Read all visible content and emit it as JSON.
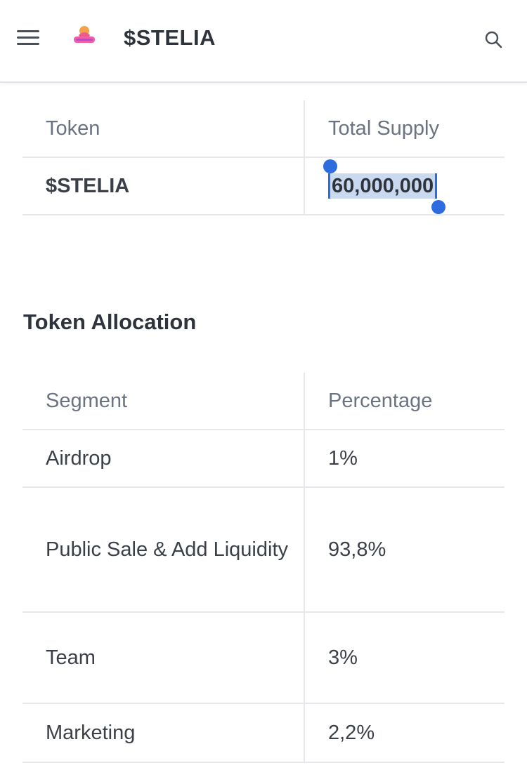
{
  "header": {
    "title": "$STELIA",
    "menu_icon": "hamburger-menu-icon",
    "search_icon": "search-icon",
    "logo_icon": "stelia-logo-icon"
  },
  "supply_table": {
    "headers": [
      "Token",
      "Total Supply"
    ],
    "row": {
      "token": "$STELIA",
      "total_supply": "60,000,000"
    }
  },
  "allocation": {
    "title": "Token Allocation",
    "headers": [
      "Segment",
      "Percentage"
    ],
    "rows": [
      {
        "segment": "Airdrop",
        "percentage": "1%"
      },
      {
        "segment": "Public Sale & Add Liquidity",
        "percentage": "93,8%"
      },
      {
        "segment": "Team",
        "percentage": "3%"
      },
      {
        "segment": "Marketing",
        "percentage": "2,2%"
      }
    ]
  },
  "colors": {
    "selection": "#c8d9f0",
    "selection_handle": "#2d6cdf",
    "text_primary": "#2f343c",
    "text_muted": "#6b7280"
  }
}
